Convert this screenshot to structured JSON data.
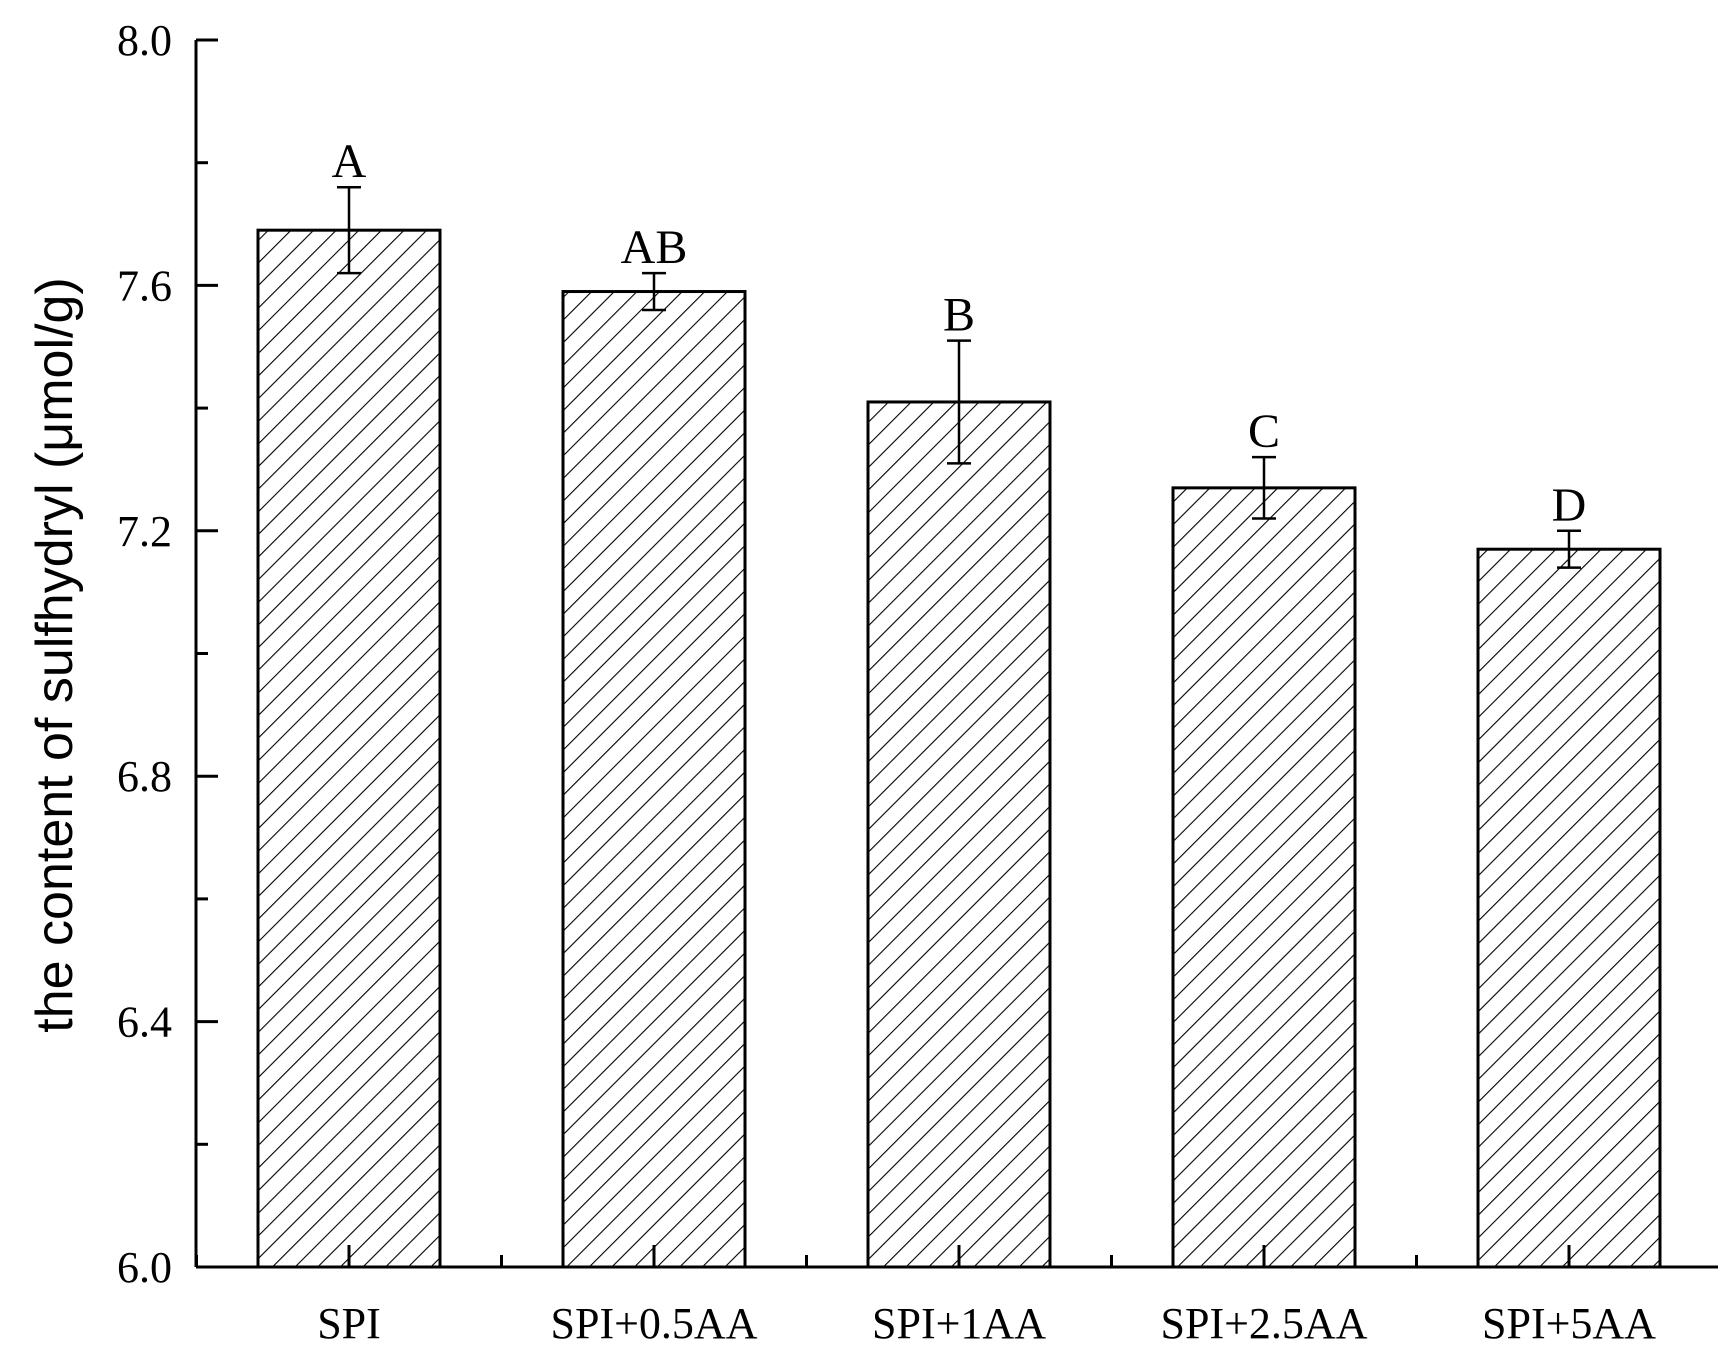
{
  "chart_data": {
    "type": "bar",
    "title": "",
    "xlabel": "",
    "ylabel": "the content of sulfhydryl (μmol/g)",
    "ylim": [
      6.0,
      8.0
    ],
    "yticks": [
      6.0,
      6.4,
      6.8,
      7.2,
      7.6,
      8.0
    ],
    "ytick_labels": [
      "6.0",
      "6.4",
      "6.8",
      "7.2",
      "7.6",
      "8.0"
    ],
    "categories": [
      "SPI",
      "SPI+0.5AA",
      "SPI+1AA",
      "SPI+2.5AA",
      "SPI+5AA"
    ],
    "values": [
      7.69,
      7.59,
      7.41,
      7.27,
      7.17
    ],
    "errors": [
      0.07,
      0.03,
      0.1,
      0.05,
      0.03
    ],
    "significance_labels": [
      "A",
      "AB",
      "B",
      "C",
      "D"
    ],
    "grid": false,
    "bar_fill": "diagonal-hatch",
    "bar_color": "#000000"
  }
}
